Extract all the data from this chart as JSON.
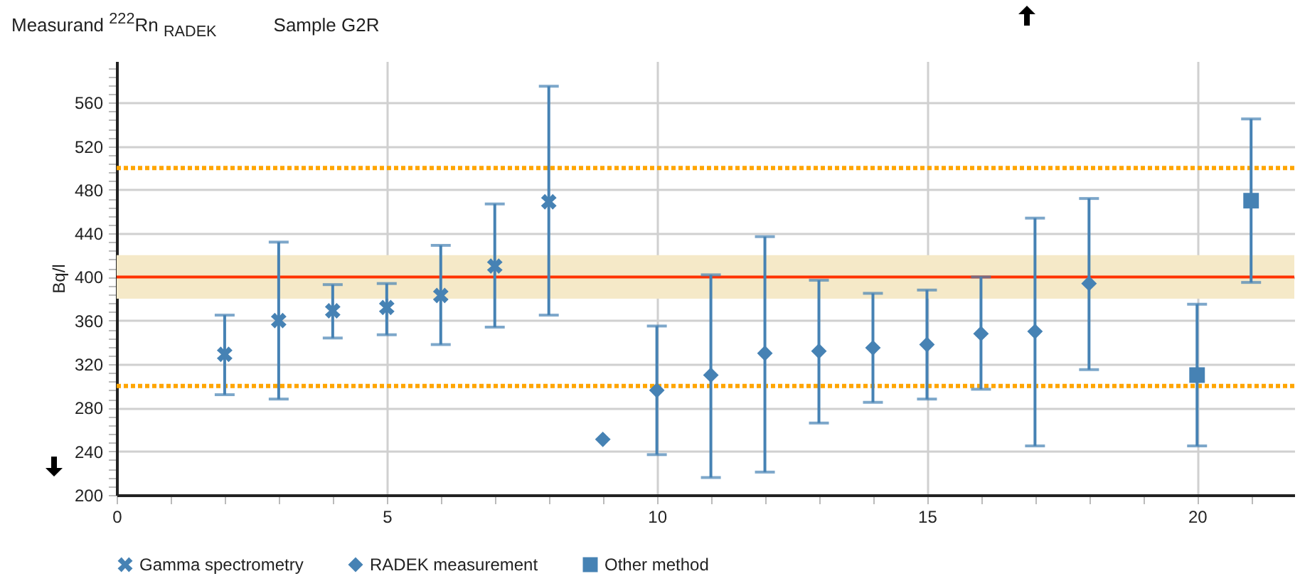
{
  "chart_data": {
    "type": "scatter",
    "title": "Measurand $^{222}$Rn $_{RADEK}$",
    "subtitle": "Sample G2R",
    "ylabel": "Bq/l",
    "xlim": [
      0,
      21.8
    ],
    "xticks": [
      0,
      {
        "value": 1,
        "label": null
      },
      {
        "value": 2,
        "label": null
      },
      {
        "value": 3,
        "label": null
      },
      {
        "value": 4,
        "label": null
      },
      5,
      {
        "value": 6,
        "label": null
      },
      {
        "value": 7,
        "label": null
      },
      {
        "value": 8,
        "label": null
      },
      {
        "value": 9,
        "label": null
      },
      10,
      {
        "value": 11,
        "label": null
      },
      {
        "value": 12,
        "label": null
      },
      {
        "value": 13,
        "label": null
      },
      {
        "value": 14,
        "label": null
      },
      15,
      {
        "value": 16,
        "label": null
      },
      {
        "value": 17,
        "label": null
      },
      {
        "value": 18,
        "label": null
      },
      {
        "value": 19,
        "label": null
      },
      20,
      {
        "value": 21,
        "label": null
      }
    ],
    "ylim": [
      200,
      598
    ],
    "yticks": [
      200,
      {
        "value": 208,
        "label": null
      },
      {
        "value": 216,
        "label": null
      },
      {
        "value": 224,
        "label": null
      },
      {
        "value": 232,
        "label": null
      },
      240,
      {
        "value": 248,
        "label": null
      },
      {
        "value": 256,
        "label": null
      },
      {
        "value": 264,
        "label": null
      },
      {
        "value": 272,
        "label": null
      },
      280,
      {
        "value": 288,
        "label": null
      },
      {
        "value": 296,
        "label": null
      },
      {
        "value": 304,
        "label": null
      },
      {
        "value": 312,
        "label": null
      },
      320,
      {
        "value": 328,
        "label": null
      },
      {
        "value": 336,
        "label": null
      },
      {
        "value": 344,
        "label": null
      },
      {
        "value": 352,
        "label": null
      },
      360,
      {
        "value": 368,
        "label": null
      },
      {
        "value": 376,
        "label": null
      },
      {
        "value": 384,
        "label": null
      },
      {
        "value": 392,
        "label": null
      },
      400,
      {
        "value": 408,
        "label": null
      },
      {
        "value": 416,
        "label": null
      },
      {
        "value": 424,
        "label": null
      },
      {
        "value": 432,
        "label": null
      },
      440,
      {
        "value": 448,
        "label": null
      },
      {
        "value": 456,
        "label": null
      },
      {
        "value": 464,
        "label": null
      },
      {
        "value": 472,
        "label": null
      },
      480,
      {
        "value": 488,
        "label": null
      },
      {
        "value": 496,
        "label": null
      },
      {
        "value": 504,
        "label": null
      },
      {
        "value": 512,
        "label": null
      },
      520,
      {
        "value": 528,
        "label": null
      },
      {
        "value": 536,
        "label": null
      },
      {
        "value": 544,
        "label": null
      },
      {
        "value": 552,
        "label": null
      },
      560,
      {
        "value": 568,
        "label": null
      },
      {
        "value": 576,
        "label": null
      },
      {
        "value": 584,
        "label": null
      },
      {
        "value": 592,
        "label": null
      }
    ],
    "grid": true,
    "legend": "bottom",
    "series": [
      {
        "name": "Gamma spectrometry",
        "color": "#4682b4",
        "marker": "cross",
        "x": [
          2,
          3,
          4,
          5,
          6,
          7,
          8
        ],
        "values": [
          329,
          360,
          369,
          372,
          383,
          410,
          469
        ],
        "errors": [
          [
            292,
            365
          ],
          [
            288,
            432
          ],
          [
            344,
            393
          ],
          [
            347,
            394
          ],
          [
            338,
            429
          ],
          [
            354,
            467
          ],
          [
            365,
            575
          ]
        ]
      },
      {
        "name": "RADEK measurement",
        "color": "#4682b4",
        "marker": "diamond",
        "x": [
          9,
          10,
          11,
          12,
          13,
          14,
          15,
          16,
          17,
          18
        ],
        "values": [
          251,
          296,
          310,
          330,
          332,
          335,
          338,
          348,
          350,
          394
        ],
        "errors": [
          null,
          [
            237,
            355
          ],
          [
            216,
            402
          ],
          [
            221,
            437
          ],
          [
            266,
            397
          ],
          [
            285,
            385
          ],
          [
            288,
            388
          ],
          [
            297,
            400
          ],
          [
            245,
            454
          ],
          [
            315,
            472
          ]
        ]
      },
      {
        "name": "Other method",
        "color": "#4682b4",
        "marker": "square",
        "x": [
          20,
          21
        ],
        "values": [
          310,
          470
        ],
        "errors": [
          [
            245,
            375
          ],
          [
            395,
            545
          ]
        ]
      }
    ],
    "bands": [
      {
        "axis": "y",
        "from": 380,
        "to": 420,
        "color": "#f5e9c8"
      }
    ],
    "ref_lines": [
      {
        "axis": "y",
        "value": 400,
        "color": "#ff3300",
        "line_style": "solid"
      },
      {
        "axis": "y",
        "value": 500,
        "color": "#ffa500",
        "line_style": "dotted"
      },
      {
        "axis": "y",
        "value": 300,
        "color": "#ffa500",
        "line_style": "dotted"
      }
    ]
  }
}
